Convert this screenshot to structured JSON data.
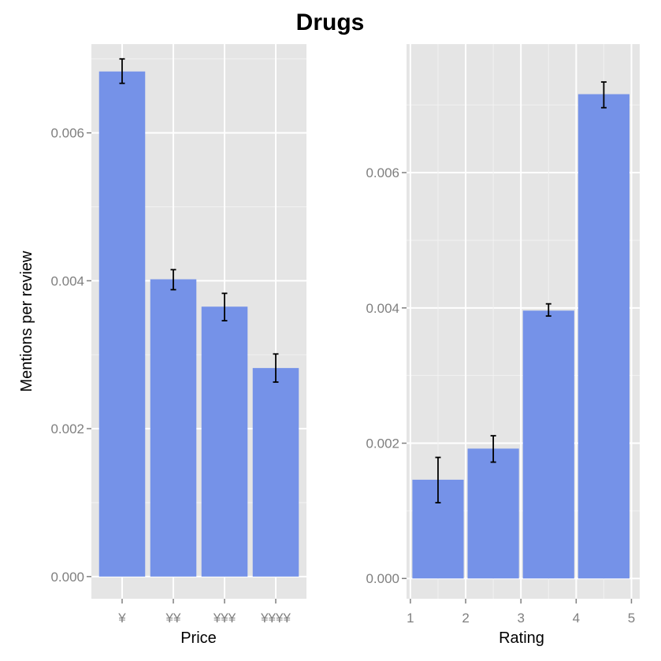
{
  "title": "Drugs",
  "colors": {
    "panel_bg": "#e5e5e5",
    "grid_major": "#ffffff",
    "grid_minor": "#f2f2f2",
    "bar": "#7592e8",
    "error_bar": "#000000",
    "tick_text": "#7f7f7f"
  },
  "chart_data": [
    {
      "type": "bar",
      "xlabel": "Price",
      "ylabel": "Mentions per review",
      "x_scale": "discrete",
      "categories": [
        "¥",
        "¥¥",
        "¥¥¥",
        "¥¥¥¥"
      ],
      "values": [
        0.00683,
        0.00402,
        0.00365,
        0.00282
      ],
      "error_low": [
        0.00667,
        0.00388,
        0.00346,
        0.00263
      ],
      "error_high": [
        0.007,
        0.00415,
        0.00383,
        0.00301
      ],
      "ylim": [
        -0.0003,
        0.0072
      ],
      "yticks": [
        0.0,
        0.002,
        0.004,
        0.006
      ],
      "ytick_labels": [
        "0.000",
        "0.002",
        "0.004",
        "0.006"
      ],
      "grid": true,
      "legend": "none"
    },
    {
      "type": "bar",
      "xlabel": "Rating",
      "ylabel": "",
      "x_scale": "continuous",
      "xlim": [
        0.93,
        5.15
      ],
      "bins": [
        [
          1,
          2
        ],
        [
          2,
          3
        ],
        [
          3,
          4
        ],
        [
          4,
          5
        ]
      ],
      "values": [
        0.00146,
        0.00192,
        0.00396,
        0.00716
      ],
      "error_low": [
        0.00112,
        0.00172,
        0.00388,
        0.00696
      ],
      "error_high": [
        0.00179,
        0.00211,
        0.00406,
        0.00734
      ],
      "ylim": [
        -0.0003,
        0.0079
      ],
      "yticks": [
        0.0,
        0.002,
        0.004,
        0.006
      ],
      "ytick_labels": [
        "0.000",
        "0.002",
        "0.004",
        "0.006"
      ],
      "xticks": [
        1,
        2,
        3,
        4,
        5
      ],
      "xtick_labels": [
        "1",
        "2",
        "3",
        "4",
        "5"
      ],
      "grid": true,
      "legend": "none"
    }
  ]
}
